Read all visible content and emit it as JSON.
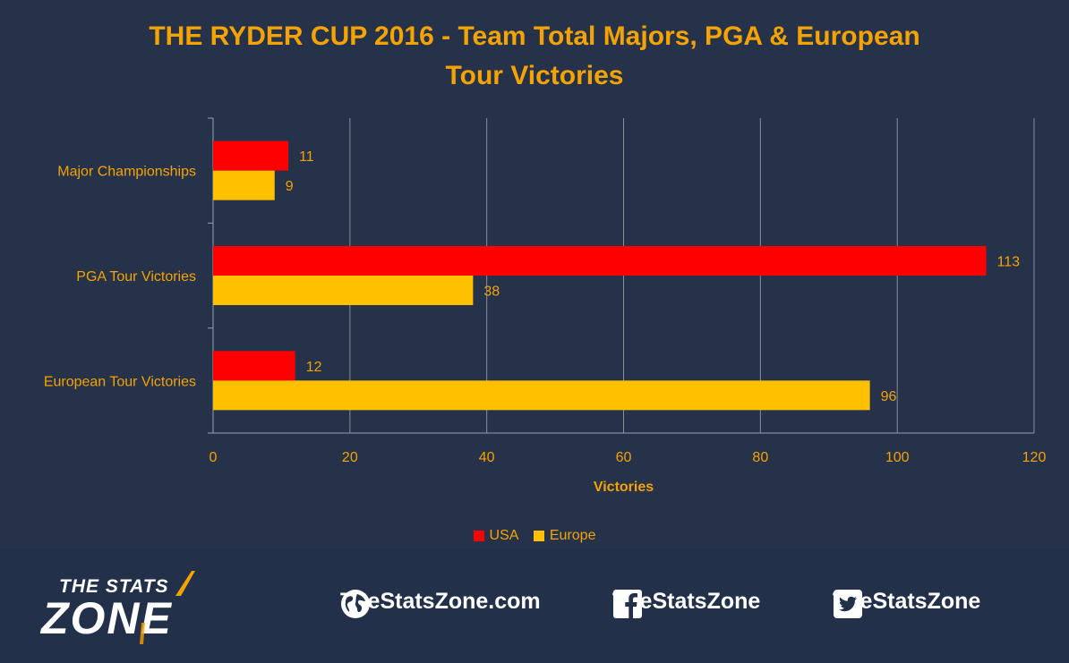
{
  "chart_data": {
    "type": "bar",
    "orientation": "horizontal",
    "title": "THE RYDER CUP 2016 - Team Total Majors, PGA & European Tour Victories",
    "title_lines": [
      "THE RYDER CUP 2016 - Team Total Majors, PGA & European",
      "Tour Victories"
    ],
    "categories": [
      "Major Championships",
      "PGA Tour Victories",
      "European Tour Victories"
    ],
    "series": [
      {
        "name": "USA",
        "color": "#ff0000",
        "values": [
          11,
          113,
          12
        ]
      },
      {
        "name": "Europe",
        "color": "#ffc000",
        "values": [
          9,
          38,
          96
        ]
      }
    ],
    "xlabel": "Victories",
    "ylabel": "",
    "xlim": [
      0,
      120
    ],
    "xticks": [
      0,
      20,
      40,
      60,
      80,
      100,
      120
    ],
    "grid": true,
    "legend_position": "bottom"
  },
  "footer": {
    "logo_line1": "THE STATS",
    "logo_line2": "ZONE",
    "website": "TheStatsZone.com",
    "facebook": "TheStatsZone",
    "twitter": "TheStatsZone",
    "icons": [
      "globe-icon",
      "facebook-icon",
      "twitter-icon"
    ]
  }
}
